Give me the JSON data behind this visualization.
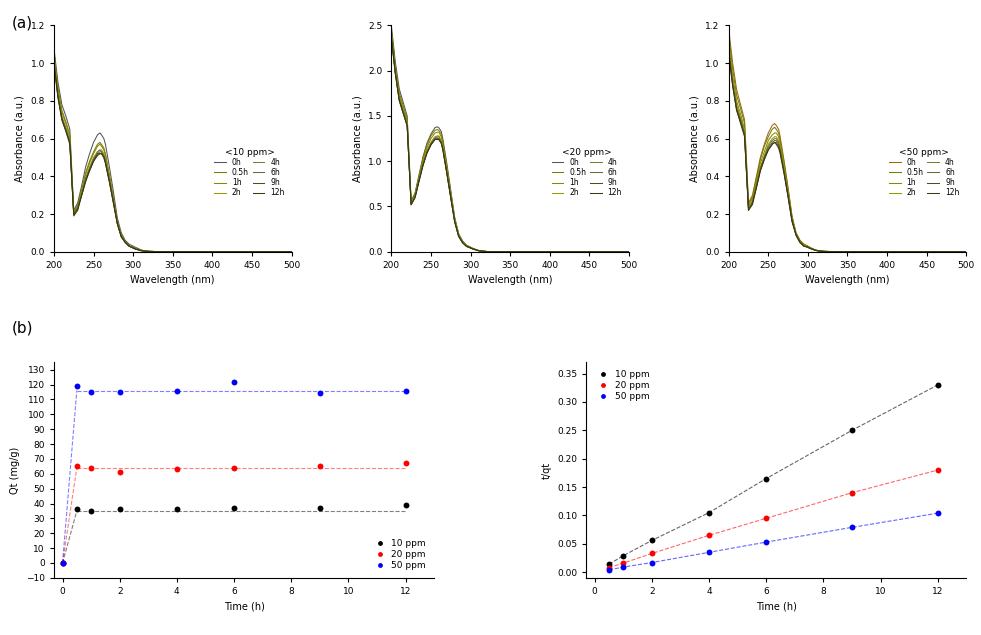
{
  "uv_panel_titles": [
    "<10 ppm>",
    "<20 ppm>",
    "<50 ppm>"
  ],
  "uv_ylabel": "Absorbance (a.u.)",
  "uv_xlabel": "Wavelength (nm)",
  "uv_xlim": [
    200,
    500
  ],
  "uv_time_labels_row1": [
    "0h",
    "0.5h",
    "1h"
  ],
  "uv_time_labels_row2": [
    "2h",
    "4h",
    "6h"
  ],
  "uv_time_labels_row3": [
    "9h",
    "12h"
  ],
  "uv_wavelengths": [
    200,
    205,
    210,
    215,
    220,
    225,
    230,
    235,
    240,
    245,
    250,
    255,
    258,
    260,
    263,
    265,
    270,
    275,
    280,
    285,
    290,
    295,
    300,
    302,
    305,
    310,
    315,
    320,
    330,
    340,
    350,
    360,
    380,
    400,
    420,
    440,
    460,
    480,
    500
  ],
  "uv_10ppm_0h": [
    1.08,
    0.9,
    0.78,
    0.72,
    0.65,
    0.22,
    0.26,
    0.35,
    0.45,
    0.52,
    0.58,
    0.62,
    0.63,
    0.62,
    0.6,
    0.57,
    0.45,
    0.32,
    0.18,
    0.1,
    0.06,
    0.04,
    0.03,
    0.025,
    0.02,
    0.01,
    0.005,
    0.002,
    0.001,
    0.001,
    0.001,
    0.001,
    0.001,
    0.001,
    0.001,
    0.001,
    0.001,
    0.001,
    0.001
  ],
  "uv_10ppm_0.5h": [
    1.05,
    0.87,
    0.75,
    0.69,
    0.62,
    0.21,
    0.25,
    0.33,
    0.42,
    0.48,
    0.53,
    0.57,
    0.58,
    0.57,
    0.55,
    0.52,
    0.41,
    0.29,
    0.16,
    0.09,
    0.05,
    0.03,
    0.025,
    0.02,
    0.015,
    0.008,
    0.004,
    0.002,
    0.001,
    0.001,
    0.001,
    0.001,
    0.001,
    0.001,
    0.001,
    0.001,
    0.001,
    0.001,
    0.001
  ],
  "uv_10ppm_1h": [
    1.04,
    0.86,
    0.74,
    0.68,
    0.61,
    0.21,
    0.24,
    0.32,
    0.41,
    0.47,
    0.52,
    0.56,
    0.57,
    0.56,
    0.54,
    0.51,
    0.4,
    0.28,
    0.16,
    0.09,
    0.05,
    0.03,
    0.022,
    0.018,
    0.014,
    0.007,
    0.003,
    0.002,
    0.001,
    0.001,
    0.001,
    0.001,
    0.001,
    0.001,
    0.001,
    0.001,
    0.001,
    0.001,
    0.001
  ],
  "uv_10ppm_2h": [
    1.02,
    0.84,
    0.72,
    0.66,
    0.59,
    0.2,
    0.23,
    0.31,
    0.39,
    0.45,
    0.5,
    0.53,
    0.54,
    0.54,
    0.52,
    0.49,
    0.39,
    0.27,
    0.15,
    0.08,
    0.05,
    0.03,
    0.021,
    0.017,
    0.013,
    0.007,
    0.003,
    0.002,
    0.001,
    0.001,
    0.001,
    0.001,
    0.001,
    0.001,
    0.001,
    0.001,
    0.001,
    0.001,
    0.001
  ],
  "uv_10ppm_4h": [
    1.01,
    0.83,
    0.71,
    0.65,
    0.59,
    0.2,
    0.23,
    0.31,
    0.39,
    0.44,
    0.49,
    0.53,
    0.54,
    0.53,
    0.51,
    0.48,
    0.38,
    0.27,
    0.15,
    0.08,
    0.05,
    0.03,
    0.021,
    0.017,
    0.013,
    0.007,
    0.003,
    0.002,
    0.001,
    0.001,
    0.001,
    0.001,
    0.001,
    0.001,
    0.001,
    0.001,
    0.001,
    0.001,
    0.001
  ],
  "uv_10ppm_6h": [
    1.01,
    0.83,
    0.71,
    0.65,
    0.58,
    0.2,
    0.23,
    0.3,
    0.38,
    0.44,
    0.49,
    0.52,
    0.53,
    0.53,
    0.51,
    0.48,
    0.38,
    0.27,
    0.15,
    0.08,
    0.05,
    0.03,
    0.02,
    0.016,
    0.012,
    0.006,
    0.003,
    0.002,
    0.001,
    0.001,
    0.001,
    0.001,
    0.001,
    0.001,
    0.001,
    0.001,
    0.001,
    0.001,
    0.001
  ],
  "uv_10ppm_9h": [
    1.0,
    0.82,
    0.7,
    0.64,
    0.58,
    0.2,
    0.23,
    0.3,
    0.38,
    0.43,
    0.48,
    0.52,
    0.52,
    0.52,
    0.5,
    0.47,
    0.37,
    0.26,
    0.15,
    0.08,
    0.05,
    0.03,
    0.02,
    0.016,
    0.012,
    0.006,
    0.003,
    0.002,
    0.001,
    0.001,
    0.001,
    0.001,
    0.001,
    0.001,
    0.001,
    0.001,
    0.001,
    0.001,
    0.001
  ],
  "uv_10ppm_12h": [
    1.0,
    0.82,
    0.7,
    0.64,
    0.57,
    0.19,
    0.22,
    0.3,
    0.37,
    0.43,
    0.48,
    0.51,
    0.52,
    0.52,
    0.5,
    0.47,
    0.37,
    0.26,
    0.15,
    0.08,
    0.05,
    0.03,
    0.02,
    0.016,
    0.012,
    0.006,
    0.003,
    0.002,
    0.001,
    0.001,
    0.001,
    0.001,
    0.001,
    0.001,
    0.001,
    0.001,
    0.001,
    0.001,
    0.001
  ],
  "uv_20ppm_0h": [
    2.5,
    2.1,
    1.8,
    1.65,
    1.5,
    0.56,
    0.65,
    0.85,
    1.05,
    1.2,
    1.3,
    1.37,
    1.38,
    1.37,
    1.33,
    1.25,
    0.98,
    0.68,
    0.38,
    0.2,
    0.12,
    0.07,
    0.05,
    0.04,
    0.03,
    0.015,
    0.008,
    0.003,
    0.001,
    0.001,
    0.001,
    0.001,
    0.001,
    0.001,
    0.001,
    0.001,
    0.001,
    0.001,
    0.001
  ],
  "uv_20ppm_0.5h": [
    2.45,
    2.05,
    1.76,
    1.61,
    1.47,
    0.55,
    0.64,
    0.84,
    1.03,
    1.18,
    1.28,
    1.34,
    1.35,
    1.34,
    1.3,
    1.22,
    0.95,
    0.66,
    0.37,
    0.19,
    0.11,
    0.07,
    0.05,
    0.04,
    0.03,
    0.014,
    0.007,
    0.003,
    0.001,
    0.001,
    0.001,
    0.001,
    0.001,
    0.001,
    0.001,
    0.001,
    0.001,
    0.001,
    0.001
  ],
  "uv_20ppm_1h": [
    2.42,
    2.02,
    1.73,
    1.58,
    1.44,
    0.54,
    0.63,
    0.82,
    1.01,
    1.15,
    1.25,
    1.31,
    1.32,
    1.32,
    1.27,
    1.19,
    0.93,
    0.64,
    0.36,
    0.19,
    0.11,
    0.07,
    0.05,
    0.04,
    0.03,
    0.014,
    0.007,
    0.003,
    0.001,
    0.001,
    0.001,
    0.001,
    0.001,
    0.001,
    0.001,
    0.001,
    0.001,
    0.001,
    0.001
  ],
  "uv_20ppm_2h": [
    2.4,
    2.0,
    1.7,
    1.56,
    1.42,
    0.53,
    0.62,
    0.8,
    0.98,
    1.12,
    1.21,
    1.27,
    1.28,
    1.28,
    1.23,
    1.16,
    0.9,
    0.62,
    0.35,
    0.18,
    0.11,
    0.06,
    0.045,
    0.037,
    0.028,
    0.013,
    0.007,
    0.003,
    0.001,
    0.001,
    0.001,
    0.001,
    0.001,
    0.001,
    0.001,
    0.001,
    0.001,
    0.001,
    0.001
  ],
  "uv_20ppm_4h": [
    2.39,
    1.99,
    1.69,
    1.55,
    1.41,
    0.53,
    0.61,
    0.8,
    0.97,
    1.11,
    1.2,
    1.26,
    1.27,
    1.27,
    1.22,
    1.15,
    0.89,
    0.61,
    0.34,
    0.18,
    0.1,
    0.06,
    0.044,
    0.036,
    0.027,
    0.013,
    0.006,
    0.003,
    0.001,
    0.001,
    0.001,
    0.001,
    0.001,
    0.001,
    0.001,
    0.001,
    0.001,
    0.001,
    0.001
  ],
  "uv_20ppm_6h": [
    2.38,
    1.98,
    1.68,
    1.54,
    1.4,
    0.52,
    0.61,
    0.79,
    0.96,
    1.1,
    1.19,
    1.25,
    1.26,
    1.25,
    1.21,
    1.14,
    0.88,
    0.6,
    0.34,
    0.17,
    0.1,
    0.06,
    0.043,
    0.035,
    0.026,
    0.012,
    0.006,
    0.003,
    0.001,
    0.001,
    0.001,
    0.001,
    0.001,
    0.001,
    0.001,
    0.001,
    0.001,
    0.001,
    0.001
  ],
  "uv_20ppm_9h": [
    2.37,
    1.97,
    1.67,
    1.53,
    1.39,
    0.52,
    0.6,
    0.78,
    0.96,
    1.09,
    1.18,
    1.24,
    1.25,
    1.24,
    1.2,
    1.13,
    0.87,
    0.6,
    0.33,
    0.17,
    0.1,
    0.06,
    0.042,
    0.034,
    0.026,
    0.012,
    0.006,
    0.003,
    0.001,
    0.001,
    0.001,
    0.001,
    0.001,
    0.001,
    0.001,
    0.001,
    0.001,
    0.001,
    0.001
  ],
  "uv_20ppm_12h": [
    2.37,
    1.97,
    1.67,
    1.53,
    1.39,
    0.52,
    0.6,
    0.78,
    0.95,
    1.09,
    1.18,
    1.24,
    1.24,
    1.24,
    1.2,
    1.13,
    0.87,
    0.6,
    0.33,
    0.17,
    0.1,
    0.06,
    0.042,
    0.034,
    0.026,
    0.012,
    0.006,
    0.003,
    0.001,
    0.001,
    0.001,
    0.001,
    0.001,
    0.001,
    0.001,
    0.001,
    0.001,
    0.001,
    0.001
  ],
  "uv_50ppm_0h": [
    1.18,
    1.0,
    0.86,
    0.78,
    0.7,
    0.26,
    0.3,
    0.4,
    0.5,
    0.57,
    0.63,
    0.67,
    0.68,
    0.67,
    0.65,
    0.61,
    0.48,
    0.34,
    0.19,
    0.1,
    0.06,
    0.04,
    0.03,
    0.025,
    0.018,
    0.009,
    0.004,
    0.002,
    0.001,
    0.001,
    0.001,
    0.001,
    0.001,
    0.001,
    0.001,
    0.001,
    0.001,
    0.001,
    0.001
  ],
  "uv_50ppm_0.5h": [
    1.16,
    0.97,
    0.83,
    0.76,
    0.68,
    0.25,
    0.29,
    0.39,
    0.49,
    0.56,
    0.61,
    0.65,
    0.66,
    0.65,
    0.63,
    0.59,
    0.47,
    0.33,
    0.18,
    0.1,
    0.06,
    0.04,
    0.028,
    0.023,
    0.017,
    0.009,
    0.004,
    0.002,
    0.001,
    0.001,
    0.001,
    0.001,
    0.001,
    0.001,
    0.001,
    0.001,
    0.001,
    0.001,
    0.001
  ],
  "uv_50ppm_1h": [
    1.12,
    0.93,
    0.8,
    0.73,
    0.65,
    0.24,
    0.28,
    0.37,
    0.47,
    0.53,
    0.59,
    0.62,
    0.63,
    0.63,
    0.61,
    0.57,
    0.45,
    0.32,
    0.18,
    0.09,
    0.05,
    0.04,
    0.027,
    0.022,
    0.017,
    0.008,
    0.004,
    0.002,
    0.001,
    0.001,
    0.001,
    0.001,
    0.001,
    0.001,
    0.001,
    0.001,
    0.001,
    0.001,
    0.001
  ],
  "uv_50ppm_2h": [
    1.09,
    0.91,
    0.78,
    0.71,
    0.64,
    0.23,
    0.27,
    0.36,
    0.45,
    0.51,
    0.57,
    0.6,
    0.61,
    0.61,
    0.59,
    0.55,
    0.44,
    0.31,
    0.17,
    0.09,
    0.05,
    0.03,
    0.026,
    0.021,
    0.016,
    0.008,
    0.004,
    0.002,
    0.001,
    0.001,
    0.001,
    0.001,
    0.001,
    0.001,
    0.001,
    0.001,
    0.001,
    0.001,
    0.001
  ],
  "uv_50ppm_4h": [
    1.08,
    0.9,
    0.77,
    0.7,
    0.63,
    0.23,
    0.26,
    0.35,
    0.44,
    0.5,
    0.56,
    0.59,
    0.6,
    0.6,
    0.58,
    0.54,
    0.43,
    0.3,
    0.17,
    0.09,
    0.05,
    0.03,
    0.025,
    0.02,
    0.015,
    0.008,
    0.004,
    0.002,
    0.001,
    0.001,
    0.001,
    0.001,
    0.001,
    0.001,
    0.001,
    0.001,
    0.001,
    0.001,
    0.001
  ],
  "uv_50ppm_6h": [
    1.07,
    0.89,
    0.76,
    0.7,
    0.62,
    0.23,
    0.26,
    0.35,
    0.44,
    0.5,
    0.55,
    0.58,
    0.59,
    0.59,
    0.57,
    0.54,
    0.42,
    0.3,
    0.17,
    0.09,
    0.05,
    0.03,
    0.025,
    0.02,
    0.015,
    0.008,
    0.004,
    0.002,
    0.001,
    0.001,
    0.001,
    0.001,
    0.001,
    0.001,
    0.001,
    0.001,
    0.001,
    0.001,
    0.001
  ],
  "uv_50ppm_9h": [
    1.06,
    0.88,
    0.75,
    0.69,
    0.62,
    0.22,
    0.26,
    0.34,
    0.43,
    0.49,
    0.54,
    0.57,
    0.58,
    0.58,
    0.56,
    0.53,
    0.42,
    0.29,
    0.16,
    0.09,
    0.05,
    0.03,
    0.024,
    0.019,
    0.015,
    0.007,
    0.004,
    0.002,
    0.001,
    0.001,
    0.001,
    0.001,
    0.001,
    0.001,
    0.001,
    0.001,
    0.001,
    0.001,
    0.001
  ],
  "uv_50ppm_12h": [
    1.05,
    0.88,
    0.75,
    0.68,
    0.61,
    0.22,
    0.25,
    0.34,
    0.43,
    0.49,
    0.54,
    0.57,
    0.58,
    0.57,
    0.55,
    0.52,
    0.41,
    0.29,
    0.16,
    0.09,
    0.05,
    0.03,
    0.024,
    0.019,
    0.014,
    0.007,
    0.003,
    0.002,
    0.001,
    0.001,
    0.001,
    0.001,
    0.001,
    0.001,
    0.001,
    0.001,
    0.001,
    0.001,
    0.001
  ],
  "qt_time": [
    0,
    0.5,
    1,
    2,
    4,
    6,
    9,
    12
  ],
  "qt_10ppm": [
    0,
    36,
    35,
    36,
    36,
    37,
    37,
    39
  ],
  "qt_20ppm": [
    0,
    65,
    64,
    61,
    63,
    64,
    65,
    67
  ],
  "qt_50ppm": [
    0,
    119,
    115,
    115,
    116,
    122,
    114,
    116
  ],
  "qt_ylabel": "Qt (mg/g)",
  "qt_xlabel": "Time (h)",
  "qt_ylim": [
    -10,
    135
  ],
  "qt_xlim": [
    -0.3,
    13
  ],
  "tqt_time": [
    0.5,
    1,
    2,
    4,
    6,
    9,
    12
  ],
  "tqt_10ppm": [
    0.014,
    0.029,
    0.056,
    0.105,
    0.165,
    0.25,
    0.33
  ],
  "tqt_20ppm": [
    0.008,
    0.016,
    0.033,
    0.065,
    0.095,
    0.14,
    0.18
  ],
  "tqt_50ppm": [
    0.004,
    0.009,
    0.017,
    0.035,
    0.053,
    0.079,
    0.104
  ],
  "tqt_ylabel": "t/qt",
  "tqt_xlabel": "Time (h)",
  "tqt_ylim": [
    -0.01,
    0.37
  ],
  "tqt_xlim": [
    -0.3,
    13
  ],
  "color_10ppm": "#000000",
  "color_20ppm": "#ff0000",
  "color_50ppm": "#0000ff",
  "color_yellow": "#ffff00",
  "color_cyan": "#00cccc",
  "uv_colors_10": [
    "#555555",
    "#7a7a00",
    "#888800",
    "#9a9a00",
    "#7a7a30",
    "#666640",
    "#4d4d20",
    "#3a3a10"
  ],
  "uv_colors_20": [
    "#555555",
    "#7a7a00",
    "#888800",
    "#9a9a00",
    "#7a7a30",
    "#666640",
    "#4d4d20",
    "#3a3a10"
  ],
  "uv_colors_50": [
    "#9b6914",
    "#7a7a00",
    "#888800",
    "#9a9a00",
    "#7a7a30",
    "#666640",
    "#4d4d20",
    "#3a3a10"
  ]
}
